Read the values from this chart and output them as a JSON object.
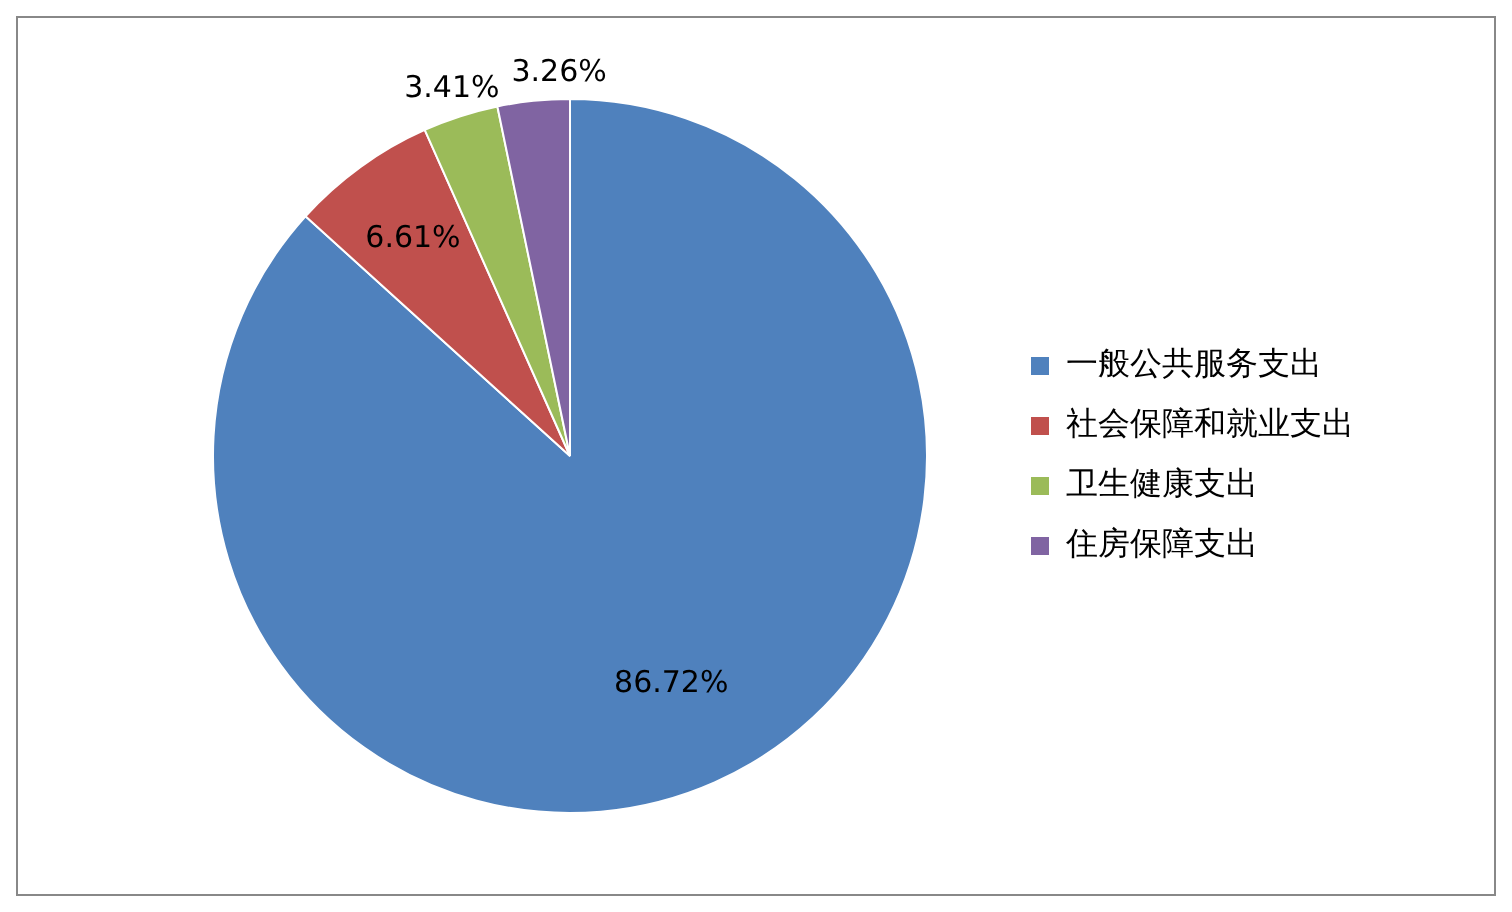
{
  "chart_data": {
    "type": "pie",
    "categories": [
      "一般公共服务支出",
      "社会保障和就业支出",
      "卫生健康支出",
      "住房保障支出"
    ],
    "values": [
      86.72,
      6.61,
      3.41,
      3.26
    ],
    "colors": [
      "#4f81bd",
      "#c0504d",
      "#9bbb59",
      "#8064a2"
    ],
    "value_labels": [
      "86.72%",
      "6.61%",
      "3.41%",
      "3.26%"
    ],
    "legend": "right"
  }
}
